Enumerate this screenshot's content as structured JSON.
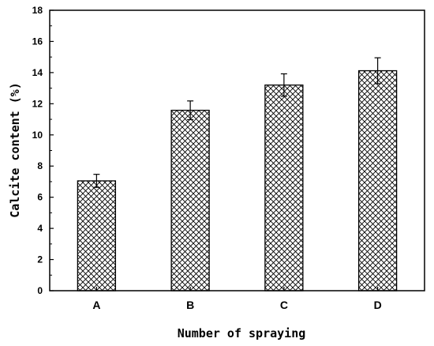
{
  "chart_data": {
    "type": "bar",
    "title": "",
    "xlabel": "Number of spraying",
    "ylabel": "Calcite content (%)",
    "categories": [
      "A",
      "B",
      "C",
      "D"
    ],
    "values": [
      7.05,
      11.58,
      13.2,
      14.12
    ],
    "errors": [
      0.42,
      0.6,
      0.72,
      0.83
    ],
    "ylim": [
      0,
      18
    ],
    "yticks": [
      "0",
      "2",
      "4",
      "6",
      "8",
      "10",
      "12",
      "14",
      "16",
      "18"
    ],
    "bar_pattern": "crosshatch",
    "bar_color": "#000000",
    "grid": false,
    "legend": "none"
  }
}
